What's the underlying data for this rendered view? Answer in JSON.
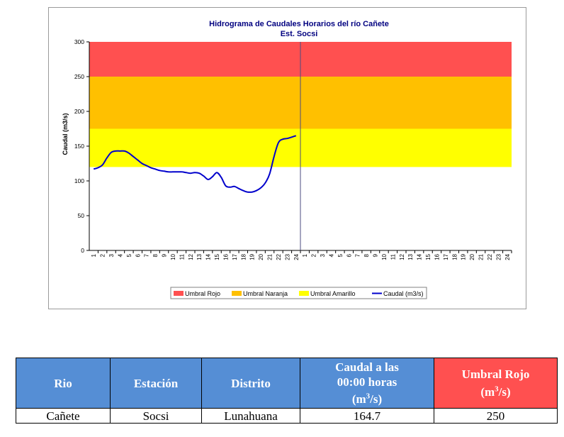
{
  "chart_data": {
    "type": "line",
    "title": "Hidrograma de Caudales Horarios del río Cañete",
    "subtitle": "Est. Socsi",
    "xlabel": "",
    "ylabel": "Caudal  (m3/s)",
    "ylim": [
      0,
      300
    ],
    "yticks": [
      "0",
      "50",
      "100",
      "150",
      "200",
      "250",
      "300"
    ],
    "x_ticks": [
      "1",
      "2",
      "3",
      "4",
      "5",
      "6",
      "7",
      "8",
      "9",
      "10",
      "11",
      "12",
      "13",
      "14",
      "15",
      "16",
      "17",
      "18",
      "19",
      "20",
      "21",
      "22",
      "23",
      "24",
      "1",
      "2",
      "3",
      "4",
      "5",
      "6",
      "7",
      "8",
      "9",
      "10",
      "11",
      "12",
      "13",
      "14",
      "15",
      "16",
      "17",
      "18",
      "19",
      "20",
      "21",
      "22",
      "23",
      "24"
    ],
    "thresholds": [
      {
        "name": "Umbral Rojo",
        "from": 250,
        "to": 300,
        "color": "#ff5050"
      },
      {
        "name": "Umbral Naranja",
        "from": 175,
        "to": 250,
        "color": "#ffc000"
      },
      {
        "name": "Umbral Amarillo",
        "from": 120,
        "to": 175,
        "color": "#ffff00"
      }
    ],
    "series": [
      {
        "name": "Caudal (m3/s)",
        "color": "#0000cc",
        "x": [
          1,
          1.5,
          2,
          2.5,
          3,
          3.5,
          4,
          4.5,
          5,
          5.5,
          6,
          6.5,
          7,
          7.5,
          8,
          8.5,
          9,
          9.5,
          10,
          10.5,
          11,
          11.5,
          12,
          12.5,
          13,
          13.5,
          14,
          14.5,
          15,
          15.5,
          16,
          16.5,
          17,
          17.5,
          18,
          18.5,
          19,
          19.5,
          20,
          20.5,
          21,
          21.5,
          22,
          22.5,
          23,
          23.5,
          24
        ],
        "values": [
          117,
          119,
          123,
          133,
          141,
          143,
          143,
          143,
          140,
          135,
          130,
          125,
          122,
          119,
          117,
          115,
          114,
          113,
          113,
          113,
          113,
          112,
          111,
          112,
          111,
          107,
          102,
          106,
          112,
          105,
          93,
          91,
          92,
          89,
          86,
          84,
          84,
          86,
          90,
          97,
          110,
          135,
          155,
          160,
          161,
          163,
          165
        ]
      }
    ],
    "legend": [
      "Umbral Rojo",
      "Umbral Naranja",
      "Umbral Amarillo",
      "Caudal (m3/s)"
    ],
    "legend_position": "bottom",
    "grid": false,
    "divider_at_day": 25
  },
  "table": {
    "headers": [
      {
        "label": "Rio",
        "bg": "#558ed5"
      },
      {
        "label": "Estación",
        "bg": "#558ed5"
      },
      {
        "label": "Distrito",
        "bg": "#558ed5"
      },
      {
        "label_line1": "Caudal a las",
        "label_line2": "00:00 horas",
        "label_unit_base": "(m",
        "label_unit_sup": "3",
        "label_unit_end": "/s)",
        "bg": "#558ed5"
      },
      {
        "label_line1": "Umbral Rojo",
        "label_unit_base": "(m",
        "label_unit_sup": "3",
        "label_unit_end": "/s)",
        "bg": "#ff5050"
      }
    ],
    "row": {
      "rio": "Cañete",
      "estacion": "Socsi",
      "distrito": "Lunahuana",
      "caudal": "164.7",
      "umbral": "250"
    }
  }
}
